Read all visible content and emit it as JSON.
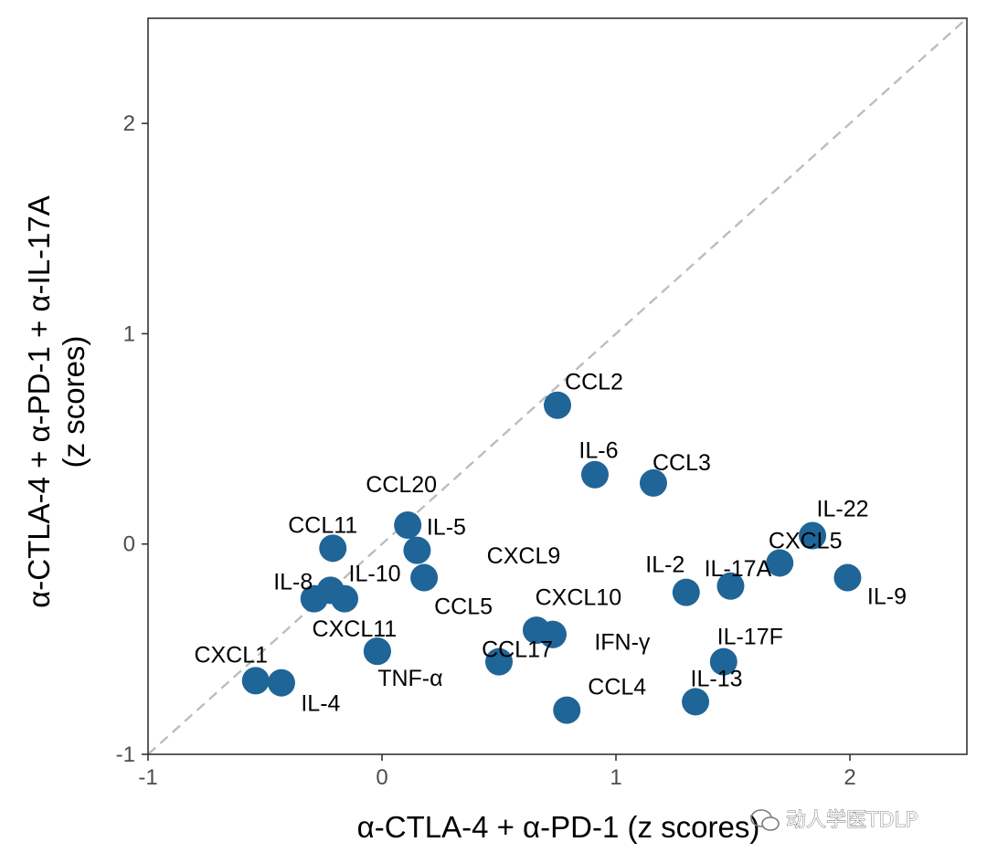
{
  "chart_data": {
    "type": "scatter",
    "title": "",
    "xlabel": "α-CTLA-4 + α-PD-1 (z scores)",
    "ylabel_lines": [
      "α-CTLA-4 + α-PD-1 + α-IL-17A",
      "(z scores)"
    ],
    "xlim": [
      -1,
      2.5
    ],
    "ylim": [
      -1,
      2.5
    ],
    "x_ticks": [
      -1,
      0,
      1,
      2
    ],
    "y_ticks": [
      -1,
      0,
      1,
      2
    ],
    "x_tick_labels": [
      "-1",
      "0",
      "1",
      "2"
    ],
    "y_tick_labels": [
      "-1",
      "0",
      "1",
      "2"
    ],
    "grid": false,
    "reference_line": "y = x (dashed)",
    "point_color": "#1f6597",
    "points": [
      {
        "label": "CCL2",
        "x": 0.75,
        "y": 0.66
      },
      {
        "label": "IL-6",
        "x": 0.91,
        "y": 0.33
      },
      {
        "label": "CCL3",
        "x": 1.16,
        "y": 0.29
      },
      {
        "label": "CCL20",
        "x": 0.11,
        "y": 0.09
      },
      {
        "label": "IL-5",
        "x": 0.15,
        "y": -0.03
      },
      {
        "label": "CCL11",
        "x": -0.21,
        "y": -0.02
      },
      {
        "label": "IL-8",
        "x": -0.29,
        "y": -0.26
      },
      {
        "label": "IL-10",
        "x": -0.16,
        "y": -0.26
      },
      {
        "label": "",
        "x": -0.22,
        "y": -0.22
      },
      {
        "label": "CCL5",
        "x": 0.18,
        "y": -0.16
      },
      {
        "label": "CXCL11",
        "x": -0.02,
        "y": -0.51
      },
      {
        "label": "CXCL1",
        "x": -0.54,
        "y": -0.65
      },
      {
        "label": "IL-4",
        "x": -0.43,
        "y": -0.66
      },
      {
        "label": "TNF-α",
        "x": -0.02,
        "y": -0.51
      },
      {
        "label": "CXCL9",
        "x": 0.66,
        "y": -0.41
      },
      {
        "label": "CXCL10",
        "x": 0.73,
        "y": -0.43
      },
      {
        "label": "CCL17",
        "x": 0.5,
        "y": -0.56
      },
      {
        "label": "IFN-γ",
        "x": 0.73,
        "y": -0.43
      },
      {
        "label": "CCL4",
        "x": 0.79,
        "y": -0.79
      },
      {
        "label": "IL-2",
        "x": 1.3,
        "y": -0.23
      },
      {
        "label": "IL-17A",
        "x": 1.49,
        "y": -0.2
      },
      {
        "label": "CXCL5",
        "x": 1.7,
        "y": -0.09
      },
      {
        "label": "IL-22",
        "x": 1.84,
        "y": 0.04
      },
      {
        "label": "IL-9",
        "x": 1.99,
        "y": -0.16
      },
      {
        "label": "IL-17F",
        "x": 1.46,
        "y": -0.56
      },
      {
        "label": "IL-13",
        "x": 1.34,
        "y": -0.75
      }
    ]
  },
  "watermark": "动人学医TDLP",
  "watermark_icon": "wechat-icon"
}
